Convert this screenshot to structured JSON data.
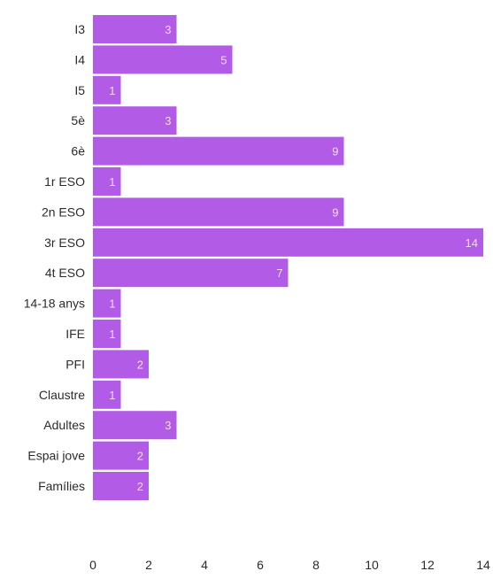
{
  "chart_data": {
    "type": "bar",
    "orientation": "horizontal",
    "title": "",
    "xlabel": "",
    "ylabel": "",
    "categories": [
      "I3",
      "I4",
      "I5",
      "5è",
      "6è",
      "1r ESO",
      "2n ESO",
      "3r ESO",
      "4t ESO",
      "14-18 anys",
      "IFE",
      "PFI",
      "Claustre",
      "Adultes",
      "Espai jove",
      "Famílies"
    ],
    "values": [
      3,
      5,
      1,
      3,
      9,
      1,
      9,
      14,
      7,
      1,
      1,
      2,
      1,
      3,
      2,
      2
    ],
    "xlim": [
      0,
      14
    ],
    "xticks": [
      0,
      2,
      4,
      6,
      8,
      10,
      12,
      14
    ],
    "grid": false,
    "legend": "none",
    "data_labels": "inside-end",
    "bar_color": "#b15be6",
    "label_color": "#f3dcf6"
  }
}
